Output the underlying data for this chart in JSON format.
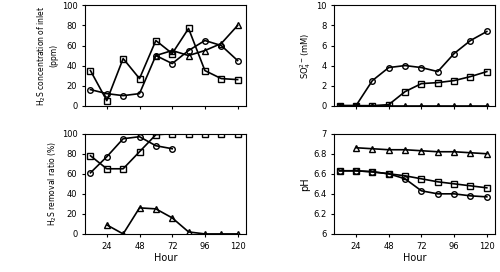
{
  "hours_main": [
    12,
    24,
    36,
    48,
    60,
    72,
    84,
    96,
    108,
    120
  ],
  "h2s_inlet_circle": [
    16,
    12,
    10,
    12,
    50,
    42,
    55,
    65,
    60,
    45
  ],
  "h2s_inlet_square": [
    35,
    5,
    47,
    27,
    65,
    52,
    77,
    35,
    27,
    26
  ],
  "h2s_inlet_triangle_h": [
    60,
    72,
    84,
    96,
    108,
    120
  ],
  "h2s_inlet_triangle_v": [
    50,
    55,
    50,
    55,
    62,
    80
  ],
  "h2s_removal_circle_h": [
    12,
    24,
    36,
    48,
    60,
    72
  ],
  "h2s_removal_circle_v": [
    61,
    77,
    95,
    97,
    88,
    85
  ],
  "h2s_removal_square": [
    78,
    65,
    65,
    82,
    99,
    100,
    100,
    100,
    100,
    100
  ],
  "h2s_removal_triangle_h": [
    24,
    36,
    48,
    60,
    72,
    84,
    96,
    108,
    120
  ],
  "h2s_removal_triangle_v": [
    9,
    0,
    26,
    25,
    16,
    2,
    0,
    0,
    0
  ],
  "so4_circle_h": [
    12,
    24,
    36,
    48,
    60,
    72,
    84,
    96,
    108,
    120
  ],
  "so4_circle_v": [
    0,
    0,
    2.5,
    3.8,
    4.0,
    3.8,
    3.4,
    5.2,
    6.5,
    7.4
  ],
  "so4_square_h": [
    12,
    24,
    36,
    48,
    60,
    72,
    84,
    96,
    108,
    120
  ],
  "so4_square_v": [
    0,
    0,
    0,
    0.1,
    1.4,
    2.2,
    2.3,
    2.5,
    2.9,
    3.4
  ],
  "so4_triangle_h": [
    12,
    24,
    36,
    48,
    60,
    72,
    84,
    96,
    108,
    120
  ],
  "so4_triangle_v": [
    0,
    0,
    0,
    0,
    0,
    0,
    0,
    0,
    0,
    0
  ],
  "ph_circle_h": [
    12,
    24,
    36,
    48,
    60,
    72,
    84,
    96,
    108,
    120
  ],
  "ph_circle_v": [
    6.63,
    6.63,
    6.62,
    6.6,
    6.55,
    6.43,
    6.4,
    6.4,
    6.38,
    6.37
  ],
  "ph_square_h": [
    12,
    24,
    36,
    48,
    60,
    72,
    84,
    96,
    108,
    120
  ],
  "ph_square_v": [
    6.63,
    6.63,
    6.62,
    6.6,
    6.58,
    6.55,
    6.52,
    6.5,
    6.48,
    6.46
  ],
  "ph_triangle_h": [
    24,
    36,
    48,
    60,
    72,
    84,
    96,
    108,
    120
  ],
  "ph_triangle_v": [
    6.86,
    6.85,
    6.84,
    6.84,
    6.83,
    6.82,
    6.82,
    6.81,
    6.8
  ],
  "lc": "#000000",
  "ms": 4,
  "lw": 1.2,
  "fs": "none"
}
